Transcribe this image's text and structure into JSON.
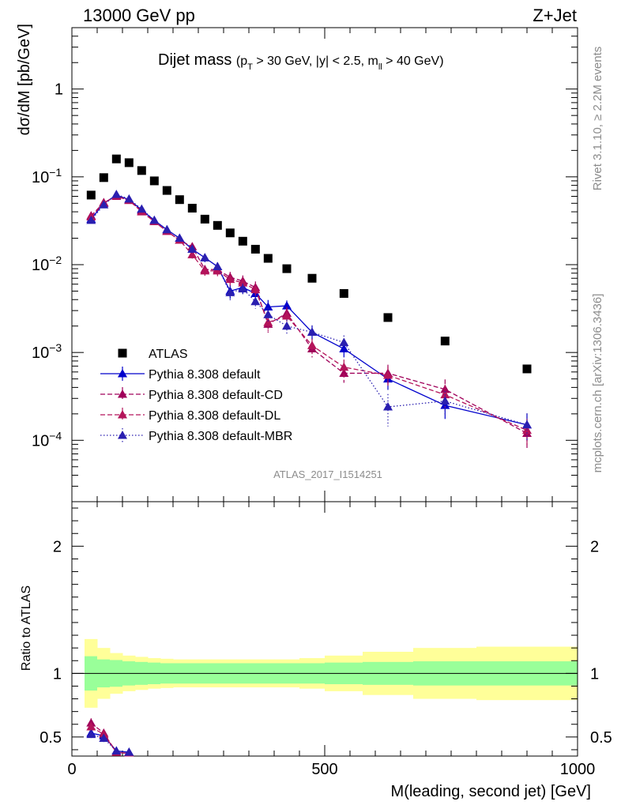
{
  "header": {
    "left": "13000 GeV pp",
    "right": "Z+Jet"
  },
  "title": {
    "main": "Dijet mass",
    "cut_pt_open": "(p",
    "cut_pt_sub": "T",
    "cut_mid": " > 30 GeV, |y| < 2.5, m",
    "cut_ll_sub": "ll",
    "cut_end": " > 40 GeV)"
  },
  "side_labels": {
    "rivet": "Rivet 3.1.10, ≥ 2.2M events",
    "mcplots": "mcplots.cern.ch [arXiv:1306.3436]"
  },
  "analysis_id": "ATLAS_2017_I1514251",
  "colors": {
    "data": "#000000",
    "default": "#0000cc",
    "default_cd": "#a0005a",
    "default_dl": "#b4145a",
    "default_mbr": "#2a1fb0",
    "band_inner": "#99ff99",
    "band_outer": "#ffff99"
  },
  "chart_data": [
    {
      "type": "scatter",
      "panel": "main",
      "ylabel": "dσ/dM [pb/GeV]",
      "xlim": [
        0,
        1000
      ],
      "ylim": [
        2e-05,
        5
      ],
      "yscale": "log",
      "y_ticks": [
        {
          "v": 1,
          "label": "1"
        },
        {
          "v": 0.1,
          "label": "10",
          "exp": "−1"
        },
        {
          "v": 0.01,
          "label": "10",
          "exp": "−2"
        },
        {
          "v": 0.001,
          "label": "10",
          "exp": "−3"
        },
        {
          "v": 0.0001,
          "label": "10",
          "exp": "−4"
        }
      ],
      "x": [
        38,
        63,
        88,
        113,
        138,
        163,
        188,
        213,
        238,
        263,
        288,
        313,
        338,
        363,
        388,
        425,
        475,
        538,
        625,
        738,
        900
      ],
      "xerr": [
        13,
        12,
        13,
        12,
        13,
        12,
        13,
        12,
        13,
        12,
        13,
        12,
        13,
        12,
        13,
        25,
        25,
        38,
        50,
        63,
        100
      ],
      "series": [
        {
          "name": "ATLAS",
          "key": "default_data",
          "style": "square",
          "values": [
            0.062,
            0.098,
            0.16,
            0.145,
            0.118,
            0.09,
            0.07,
            0.055,
            0.044,
            0.033,
            0.028,
            0.023,
            0.0185,
            0.015,
            0.0118,
            0.009,
            0.007,
            0.0047,
            0.0025,
            0.00135,
            0.00065
          ]
        },
        {
          "name": "Pythia 8.308 default",
          "style": "solid",
          "values": [
            0.033,
            0.05,
            0.062,
            0.055,
            0.042,
            0.032,
            0.025,
            0.02,
            0.015,
            0.012,
            0.0095,
            0.005,
            0.0055,
            0.0047,
            0.0033,
            0.0034,
            0.0017,
            0.0011,
            0.0005,
            0.00025,
            0.00015
          ],
          "rel_err": [
            0.08,
            0.07,
            0.06,
            0.06,
            0.07,
            0.07,
            0.08,
            0.09,
            0.1,
            0.11,
            0.12,
            0.18,
            0.15,
            0.17,
            0.2,
            0.15,
            0.18,
            0.2,
            0.25,
            0.3,
            0.35
          ]
        },
        {
          "name": "Pythia 8.308 default-CD",
          "style": "dashed",
          "values": [
            0.036,
            0.051,
            0.06,
            0.054,
            0.041,
            0.031,
            0.024,
            0.019,
            0.016,
            0.0088,
            0.0088,
            0.0072,
            0.0065,
            0.0055,
            0.0021,
            0.0028,
            0.0011,
            0.00058,
            0.00058,
            0.00038,
            0.00012
          ],
          "rel_err": [
            0.08,
            0.07,
            0.06,
            0.06,
            0.07,
            0.07,
            0.08,
            0.09,
            0.1,
            0.12,
            0.13,
            0.15,
            0.16,
            0.17,
            0.2,
            0.18,
            0.2,
            0.22,
            0.25,
            0.3,
            0.35
          ]
        },
        {
          "name": "Pythia 8.308 default-DL",
          "style": "dashed",
          "values": [
            0.035,
            0.05,
            0.061,
            0.054,
            0.04,
            0.031,
            0.024,
            0.019,
            0.013,
            0.0085,
            0.0085,
            0.0068,
            0.0062,
            0.0052,
            0.0022,
            0.0026,
            0.0012,
            0.00068,
            0.00055,
            0.00033,
            0.00013
          ],
          "rel_err": [
            0.08,
            0.07,
            0.06,
            0.06,
            0.07,
            0.07,
            0.08,
            0.09,
            0.1,
            0.12,
            0.13,
            0.15,
            0.16,
            0.17,
            0.2,
            0.18,
            0.2,
            0.22,
            0.25,
            0.3,
            0.35
          ]
        },
        {
          "name": "Pythia 8.308 default-MBR",
          "style": "dotted",
          "values": [
            0.032,
            0.048,
            0.063,
            0.056,
            0.043,
            0.032,
            0.025,
            0.02,
            0.015,
            0.012,
            0.0095,
            0.0048,
            0.0053,
            0.0038,
            0.0027,
            0.002,
            0.0017,
            0.0013,
            0.00024,
            0.00028,
            0.00015
          ],
          "rel_err": [
            0.08,
            0.07,
            0.06,
            0.06,
            0.07,
            0.07,
            0.08,
            0.09,
            0.1,
            0.11,
            0.12,
            0.18,
            0.15,
            0.17,
            0.2,
            0.18,
            0.2,
            0.2,
            0.4,
            0.3,
            0.35
          ]
        }
      ]
    },
    {
      "type": "scatter",
      "panel": "ratio",
      "ylabel": "Ratio to ATLAS",
      "xlabel": "M(leading, second jet) [GeV]",
      "xlim": [
        0,
        1000
      ],
      "ylim": [
        0.35,
        2.35
      ],
      "x_ticks": [
        0,
        500,
        1000
      ],
      "y_ticks": [
        0.5,
        1,
        2
      ],
      "band_edges": [
        25,
        50,
        75,
        100,
        125,
        150,
        175,
        200,
        225,
        250,
        275,
        300,
        325,
        350,
        375,
        400,
        450,
        500,
        575,
        675,
        800,
        1000
      ],
      "band_inner": [
        0.135,
        0.11,
        0.105,
        0.095,
        0.09,
        0.085,
        0.08,
        0.08,
        0.08,
        0.08,
        0.08,
        0.08,
        0.08,
        0.08,
        0.08,
        0.08,
        0.08,
        0.085,
        0.09,
        0.095,
        0.095
      ],
      "band_outer": [
        0.27,
        0.2,
        0.16,
        0.14,
        0.13,
        0.12,
        0.115,
        0.11,
        0.11,
        0.11,
        0.11,
        0.11,
        0.11,
        0.11,
        0.11,
        0.11,
        0.12,
        0.14,
        0.17,
        0.2,
        0.21
      ],
      "series": [
        {
          "name": "Pythia 8.308 default",
          "x": [
            38,
            63,
            88,
            113
          ],
          "values": [
            0.53,
            0.51,
            0.39,
            0.38
          ],
          "rel_err": [
            0.06,
            0.06,
            0.05,
            0.05
          ]
        },
        {
          "name": "Pythia 8.308 default-CD",
          "x": [
            38,
            63,
            88,
            113
          ],
          "values": [
            0.61,
            0.53,
            0.38,
            0.37
          ],
          "rel_err": [
            0.06,
            0.06,
            0.05,
            0.05
          ]
        },
        {
          "name": "Pythia 8.308 default-DL",
          "x": [
            38,
            63,
            88,
            113
          ],
          "values": [
            0.58,
            0.52,
            0.38,
            0.37
          ],
          "rel_err": [
            0.06,
            0.06,
            0.05,
            0.05
          ]
        },
        {
          "name": "Pythia 8.308 default-MBR",
          "x": [
            38,
            63,
            88,
            113
          ],
          "values": [
            0.52,
            0.49,
            0.39,
            0.38
          ],
          "rel_err": [
            0.06,
            0.06,
            0.05,
            0.05
          ]
        }
      ]
    }
  ]
}
